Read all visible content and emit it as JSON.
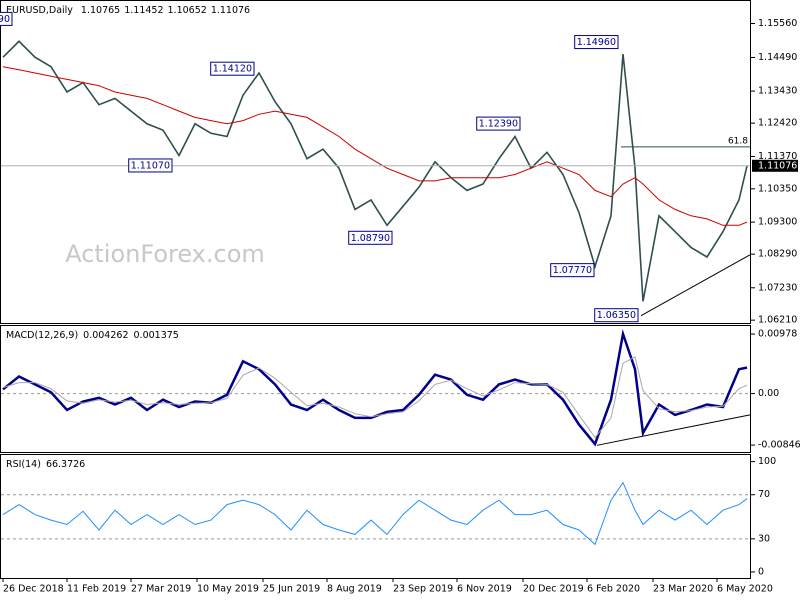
{
  "chart_data": [
    {
      "type": "line",
      "title": "EURUSD,Daily",
      "ohlc": [
        1.10765,
        1.11452,
        1.10652,
        1.11076
      ],
      "watermark": "ActionForex.com",
      "x": [
        0,
        8,
        16,
        24,
        32,
        40,
        48,
        56,
        64,
        72,
        80,
        88,
        96,
        104,
        112,
        120,
        128,
        136,
        144,
        152,
        160,
        168,
        176,
        184,
        192,
        200,
        208,
        216,
        224,
        232,
        240,
        248,
        256,
        264,
        272,
        280,
        288,
        296,
        304,
        310,
        316,
        320,
        328,
        336,
        344,
        352,
        360,
        368,
        372
      ],
      "series": [
        {
          "color": "#2f4f4f",
          "values": [
            1.145,
            1.15,
            1.145,
            1.142,
            1.134,
            1.137,
            1.13,
            1.132,
            1.128,
            1.124,
            1.122,
            1.114,
            1.124,
            1.121,
            1.12,
            1.133,
            1.14,
            1.131,
            1.124,
            1.113,
            1.116,
            1.11,
            1.097,
            1.1,
            1.092,
            1.098,
            1.104,
            1.112,
            1.107,
            1.103,
            1.105,
            1.113,
            1.12,
            1.11,
            1.115,
            1.108,
            1.096,
            1.079,
            1.095,
            1.146,
            1.11,
            1.068,
            1.095,
            1.09,
            1.085,
            1.082,
            1.09,
            1.1,
            1.11076
          ]
        },
        {
          "color": "#cc0000",
          "values": [
            1.142,
            1.141,
            1.14,
            1.139,
            1.138,
            1.137,
            1.136,
            1.134,
            1.133,
            1.132,
            1.13,
            1.128,
            1.126,
            1.125,
            1.124,
            1.125,
            1.127,
            1.128,
            1.127,
            1.126,
            1.123,
            1.12,
            1.116,
            1.113,
            1.11,
            1.108,
            1.106,
            1.106,
            1.107,
            1.107,
            1.107,
            1.107,
            1.108,
            1.11,
            1.112,
            1.11,
            1.108,
            1.103,
            1.101,
            1.105,
            1.107,
            1.105,
            1.1,
            1.097,
            1.095,
            1.094,
            1.092,
            1.092,
            1.093
          ]
        }
      ],
      "annotations": [
        {
          "label": "90",
          "x": 6,
          "y": 1.1569
        },
        {
          "label": "1.14120",
          "x": 127,
          "y": 1.1412
        },
        {
          "label": "1.11070",
          "x": 86,
          "y": 1.1107
        },
        {
          "label": "1.08790",
          "x": 196,
          "y": 1.0879
        },
        {
          "label": "1.12390",
          "x": 260,
          "y": 1.1239
        },
        {
          "label": "1.14960",
          "x": 309,
          "y": 1.1496
        },
        {
          "label": "1.07770",
          "x": 297,
          "y": 1.0777
        },
        {
          "label": "1.06350",
          "x": 319,
          "y": 1.0635
        }
      ],
      "hlines": [
        {
          "label": "61.8",
          "value": 1.1167,
          "x0": 309
        }
      ],
      "trendlines": [
        {
          "x": [
            319,
            373.5
          ],
          "y": [
            1.0635,
            1.0827
          ]
        }
      ],
      "xlim": [
        0,
        373.5
      ],
      "ylim": [
        1.0612,
        1.1627
      ],
      "yticks": [
        {
          "value": 1.1556,
          "label": "1.15560"
        },
        {
          "value": 1.1449,
          "label": "1.14490"
        },
        {
          "value": 1.1343,
          "label": "1.13430"
        },
        {
          "value": 1.1242,
          "label": "1.12420"
        },
        {
          "value": 1.1137,
          "label": "1.11370"
        },
        {
          "value": 1.1035,
          "label": "1.10350"
        },
        {
          "value": 1.093,
          "label": "1.09300"
        },
        {
          "value": 1.0829,
          "label": "1.08290"
        },
        {
          "value": 1.0723,
          "label": "1.07230"
        },
        {
          "value": 1.0621,
          "label": "1.06210"
        }
      ]
    },
    {
      "type": "line",
      "title": "MACD(12,26,9)",
      "x": [
        0,
        8,
        16,
        24,
        32,
        40,
        48,
        56,
        64,
        72,
        80,
        88,
        96,
        104,
        112,
        120,
        128,
        136,
        144,
        152,
        160,
        168,
        176,
        184,
        192,
        200,
        208,
        216,
        224,
        232,
        240,
        248,
        256,
        264,
        272,
        280,
        288,
        296,
        304,
        310,
        316,
        320,
        328,
        336,
        344,
        352,
        360,
        368,
        372
      ],
      "series": [
        {
          "color": "#00008b",
          "values": [
            0.0007,
            0.0028,
            0.0015,
            0.0002,
            -0.0027,
            -0.0013,
            -0.0007,
            -0.0018,
            -0.0007,
            -0.0027,
            -0.001,
            -0.0022,
            -0.0013,
            -0.0015,
            -0.0002,
            0.0053,
            0.004,
            0.0015,
            -0.0018,
            -0.0027,
            -0.001,
            -0.0027,
            -0.004,
            -0.004,
            -0.003,
            -0.0027,
            -0.0002,
            0.0031,
            0.0023,
            -0.0002,
            -0.001,
            0.0015,
            0.0023,
            0.0015,
            0.0015,
            -0.001,
            -0.0051,
            -0.0083,
            -0.001,
            0.0098,
            0.004,
            -0.0065,
            -0.0018,
            -0.0035,
            -0.0027,
            -0.0018,
            -0.0022,
            0.004,
            0.004262
          ]
        },
        {
          "color": "#a9a9a9",
          "values": [
            0.001,
            0.0018,
            0.0018,
            0.0008,
            -0.0012,
            -0.0016,
            -0.001,
            -0.0014,
            -0.0011,
            -0.0018,
            -0.0015,
            -0.0018,
            -0.0016,
            -0.0015,
            -0.0008,
            0.003,
            0.0042,
            0.0025,
            0.0002,
            -0.002,
            -0.0016,
            -0.0022,
            -0.0033,
            -0.0038,
            -0.0033,
            -0.003,
            -0.0012,
            0.0015,
            0.0022,
            0.0008,
            -0.0004,
            0.0006,
            0.0018,
            0.0016,
            0.0015,
            0.0002,
            -0.0035,
            -0.0072,
            -0.004,
            0.005,
            0.006,
            0.0005,
            -0.0025,
            -0.003,
            -0.0028,
            -0.0022,
            -0.0021,
            0.0008,
            0.001375
          ]
        }
      ],
      "trendlines": [
        {
          "x": [
            297,
            373.5
          ],
          "y": [
            -0.0085,
            -0.0035
          ]
        }
      ],
      "xlim": [
        0,
        373.5
      ],
      "ylim": [
        -0.0096,
        0.0111
      ],
      "yticks": [
        0.00978,
        {
          "value": 0,
          "label": "0.00"
        },
        -0.008464
      ],
      "dashed": [
        0
      ]
    },
    {
      "type": "line",
      "title": "RSI(14)",
      "x": [
        0,
        8,
        16,
        24,
        32,
        40,
        48,
        56,
        64,
        72,
        80,
        88,
        96,
        104,
        112,
        120,
        128,
        136,
        144,
        152,
        160,
        168,
        176,
        184,
        192,
        200,
        208,
        216,
        224,
        232,
        240,
        248,
        256,
        264,
        272,
        280,
        288,
        296,
        304,
        310,
        316,
        320,
        328,
        336,
        344,
        352,
        360,
        368,
        372
      ],
      "series": [
        {
          "color": "#1e90ff",
          "values": [
            52,
            61,
            52,
            47,
            43,
            55,
            38,
            56,
            43,
            52,
            43,
            52,
            43,
            47,
            61,
            65,
            61,
            52,
            38,
            56,
            43,
            38,
            34,
            47,
            34,
            52,
            65,
            56,
            47,
            43,
            56,
            65,
            52,
            52,
            56,
            43,
            38,
            25,
            65,
            81,
            56,
            43,
            56,
            47,
            56,
            43,
            56,
            61,
            66.3726
          ]
        }
      ],
      "xlim": [
        0,
        373.5
      ],
      "ylim": [
        -5.5,
        106
      ],
      "yticks": [
        100,
        70,
        30,
        0
      ],
      "dashed": [
        70,
        30
      ],
      "xticks": [
        {
          "value": 0,
          "label": "26 Dec 2018"
        },
        {
          "value": 32,
          "label": "11 Feb 2019"
        },
        {
          "value": 64,
          "label": "27 Mar 2019"
        },
        {
          "value": 97,
          "label": "10 May 2019"
        },
        {
          "value": 130,
          "label": "25 Jun 2019"
        },
        {
          "value": 162,
          "label": "8 Aug 2019"
        },
        {
          "value": 195,
          "label": "23 Sep 2019"
        },
        {
          "value": 227,
          "label": "6 Nov 2019"
        },
        {
          "value": 260,
          "label": "20 Dec 2019"
        },
        {
          "value": 292,
          "label": "6 Feb 2020"
        },
        {
          "value": 325,
          "label": "23 Mar 2020"
        },
        {
          "value": 357,
          "label": "6 May 2020"
        }
      ]
    }
  ]
}
